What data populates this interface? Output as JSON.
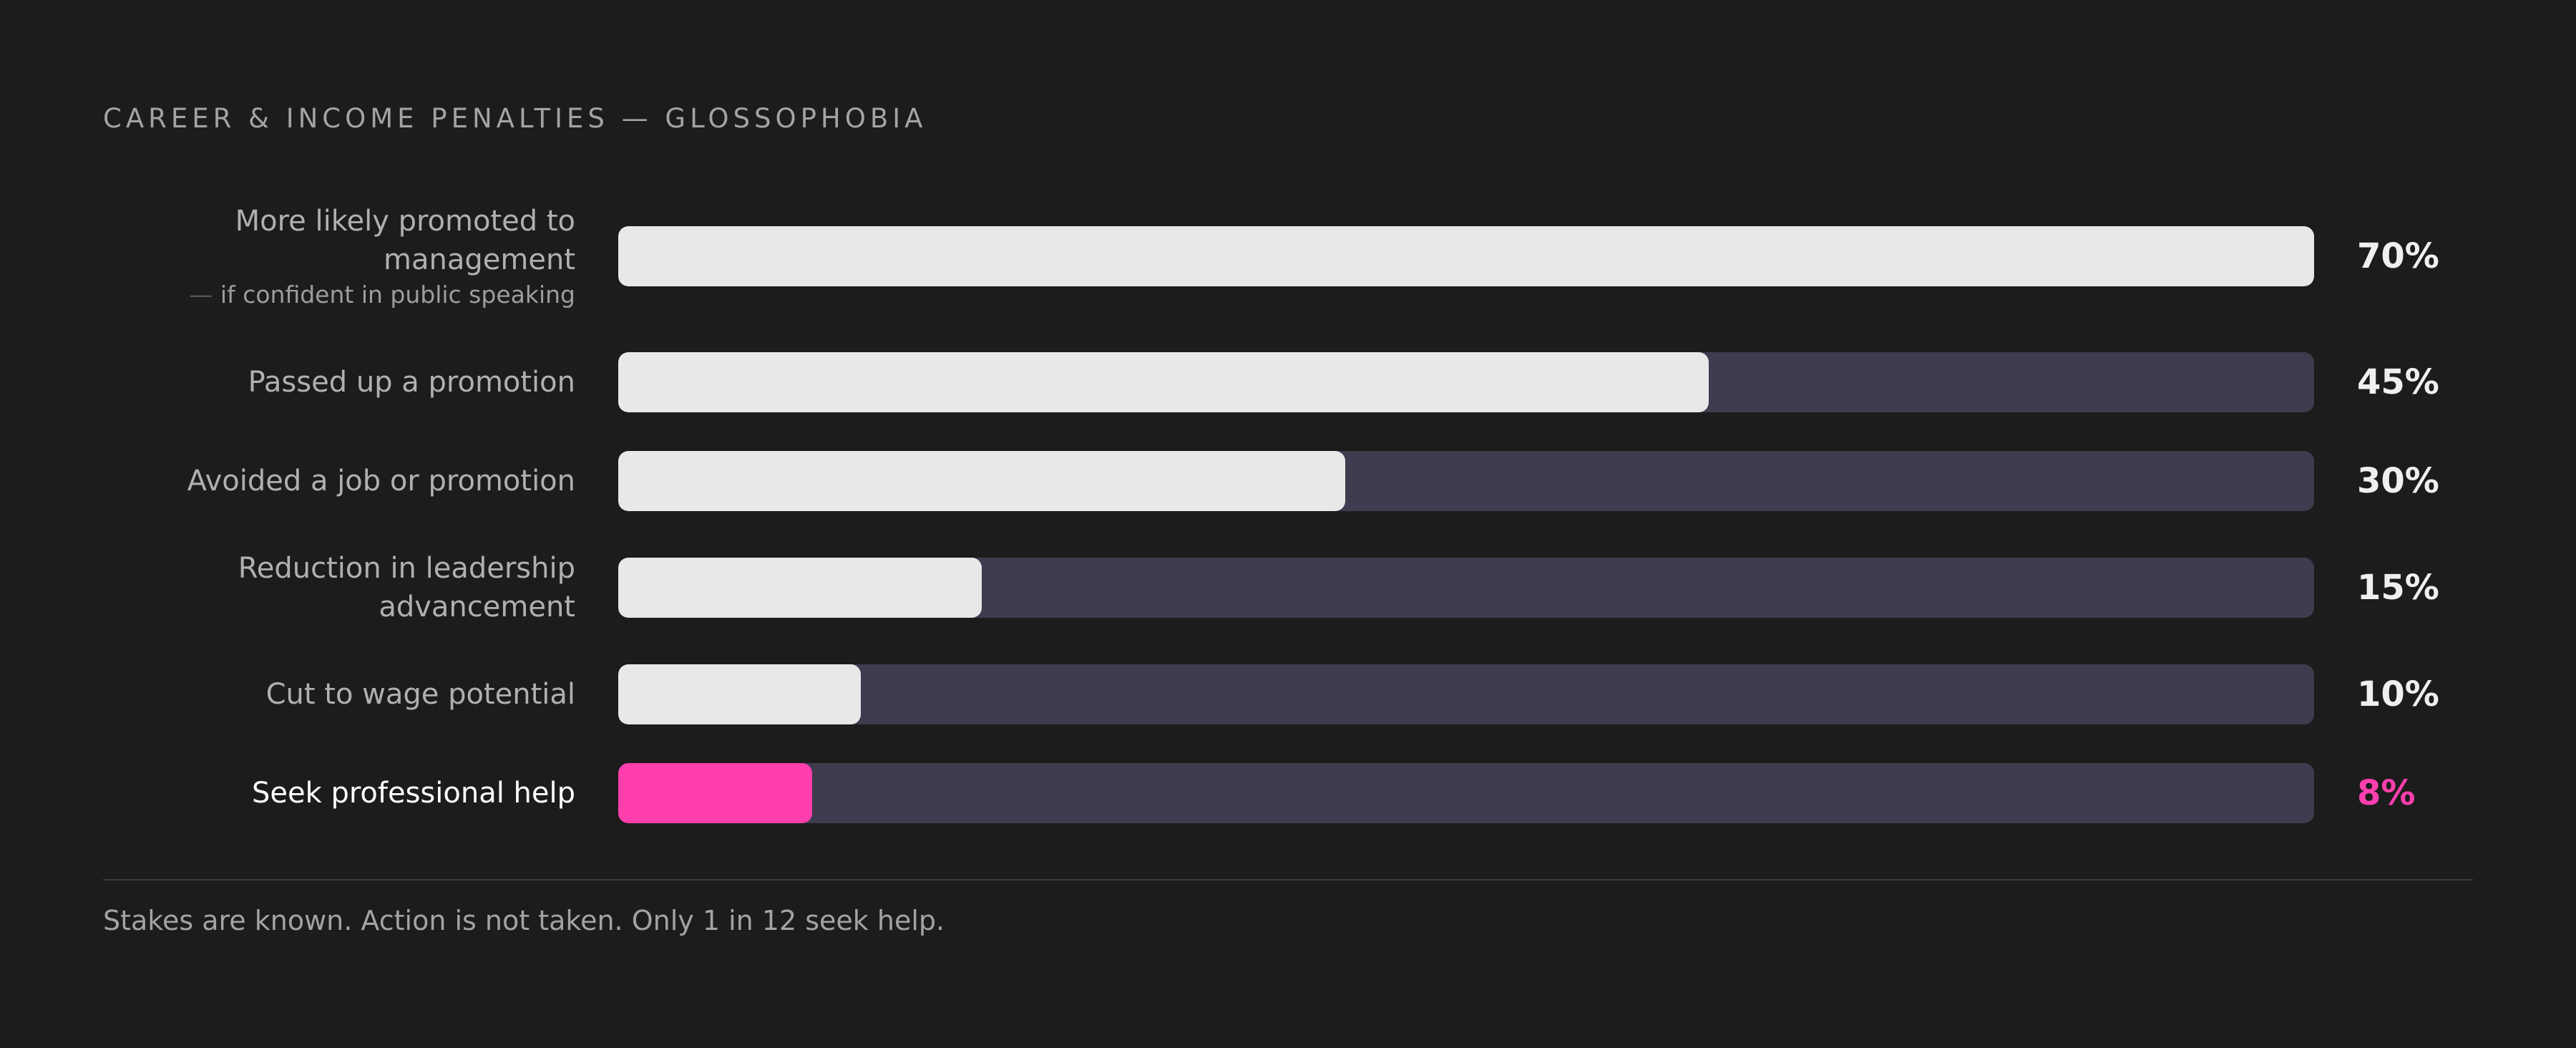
{
  "title": "CAREER & INCOME PENALTIES — GLOSSOPHOBIA",
  "footer": "Stakes are known. Action is not taken. Only 1 in 12 seek help.",
  "colors": {
    "background": "#1c1c1c",
    "track": "#3e3c4e",
    "bar": "#e8e8e8",
    "highlight": "#ff3fae"
  },
  "chart_data": {
    "type": "bar",
    "orientation": "horizontal",
    "title": "CAREER & INCOME PENALTIES — GLOSSOPHOBIA",
    "categories": [
      "More likely promoted to management",
      "Passed up a promotion",
      "Avoided a job or promotion",
      "Reduction in leadership advancement",
      "Cut to wage potential",
      "Seek professional help"
    ],
    "values": [
      70,
      45,
      30,
      15,
      10,
      8
    ],
    "value_labels": [
      "70%",
      "45%",
      "30%",
      "15%",
      "10%",
      "8%"
    ],
    "xlim": [
      0,
      70
    ],
    "bars": [
      {
        "label_lines": [
          "More likely promoted to",
          "management"
        ],
        "sublabel": "if confident in public speaking",
        "value": 70,
        "value_label": "70%",
        "highlight": false
      },
      {
        "label_lines": [
          "Passed up a promotion"
        ],
        "sublabel": "",
        "value": 45,
        "value_label": "45%",
        "highlight": false
      },
      {
        "label_lines": [
          "Avoided a job or promotion"
        ],
        "sublabel": "",
        "value": 30,
        "value_label": "30%",
        "highlight": false
      },
      {
        "label_lines": [
          "Reduction in leadership",
          "advancement"
        ],
        "sublabel": "",
        "value": 15,
        "value_label": "15%",
        "highlight": false
      },
      {
        "label_lines": [
          "Cut to wage potential"
        ],
        "sublabel": "",
        "value": 10,
        "value_label": "10%",
        "highlight": false
      },
      {
        "label_lines": [
          "Seek professional help"
        ],
        "sublabel": "",
        "value": 8,
        "value_label": "8%",
        "highlight": true
      }
    ]
  }
}
